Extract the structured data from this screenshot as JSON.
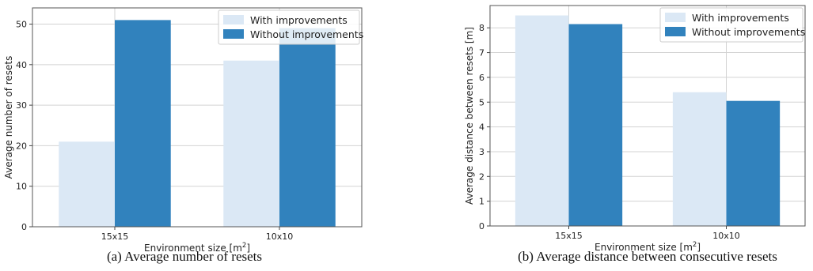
{
  "chart_data": [
    {
      "type": "bar",
      "categories": [
        "15x15",
        "10x10"
      ],
      "series": [
        {
          "name": "With improvements",
          "values": [
            21,
            41
          ]
        },
        {
          "name": "Without improvements",
          "values": [
            51,
            49
          ]
        }
      ],
      "xlabel": "Environment size [m",
      "xlabel_sup": "2",
      "xlabel_end": "]",
      "ylabel": "Average number of resets",
      "ylim": [
        0,
        54
      ],
      "yticks": [
        0,
        10,
        20,
        30,
        40,
        50
      ],
      "grid": true,
      "legend": "top-right",
      "caption": "(a)  Average number of resets",
      "colors": [
        "#dbe8f5",
        "#3182bd"
      ]
    },
    {
      "type": "bar",
      "categories": [
        "15x15",
        "10x10"
      ],
      "series": [
        {
          "name": "With improvements",
          "values": [
            8.5,
            5.4
          ]
        },
        {
          "name": "Without improvements",
          "values": [
            8.15,
            5.05
          ]
        }
      ],
      "xlabel": "Environment size [m",
      "xlabel_sup": "2",
      "xlabel_end": "]",
      "ylabel": "Average distance between resets [m]",
      "ylim": [
        0,
        8.9
      ],
      "yticks": [
        0,
        1,
        2,
        3,
        4,
        5,
        6,
        7,
        8
      ],
      "grid": true,
      "legend": "top-right",
      "caption": "(b)  Average distance between consecutive resets",
      "colors": [
        "#dbe8f5",
        "#3182bd"
      ]
    }
  ]
}
